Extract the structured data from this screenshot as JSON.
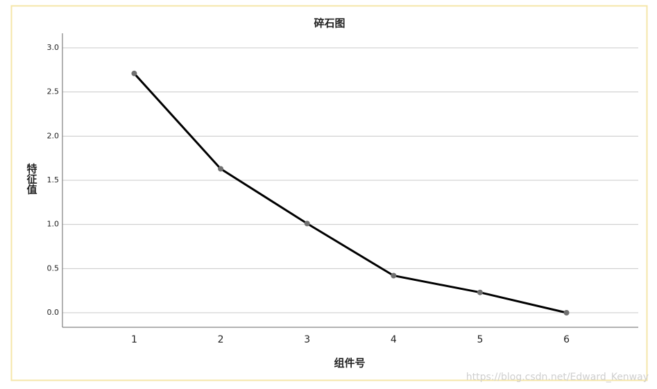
{
  "chart_data": {
    "type": "line",
    "title": "碎石图",
    "x_label": "组件号",
    "y_label": "特征值",
    "x": [
      1,
      2,
      3,
      4,
      5,
      6
    ],
    "series": [
      {
        "values": [
          2.71,
          1.63,
          1.01,
          0.42,
          0.23,
          0.0
        ],
        "color": "#000000",
        "marker_color": "#707070"
      }
    ],
    "xlim": [
      0.17,
      6.83
    ],
    "xticks": [
      1,
      2,
      3,
      4,
      5,
      6
    ],
    "ylim": [
      -0.165,
      3.165
    ],
    "yticks": [
      {
        "value": 0,
        "label": "0.0"
      },
      0.5,
      {
        "value": 1,
        "label": "1.0"
      },
      1.5,
      {
        "value": 2,
        "label": "2.0"
      },
      2.5,
      {
        "value": 3,
        "label": "3.0"
      }
    ],
    "grid": true,
    "watermark": "https://blog.csdn.net/Edward_Kenway"
  }
}
